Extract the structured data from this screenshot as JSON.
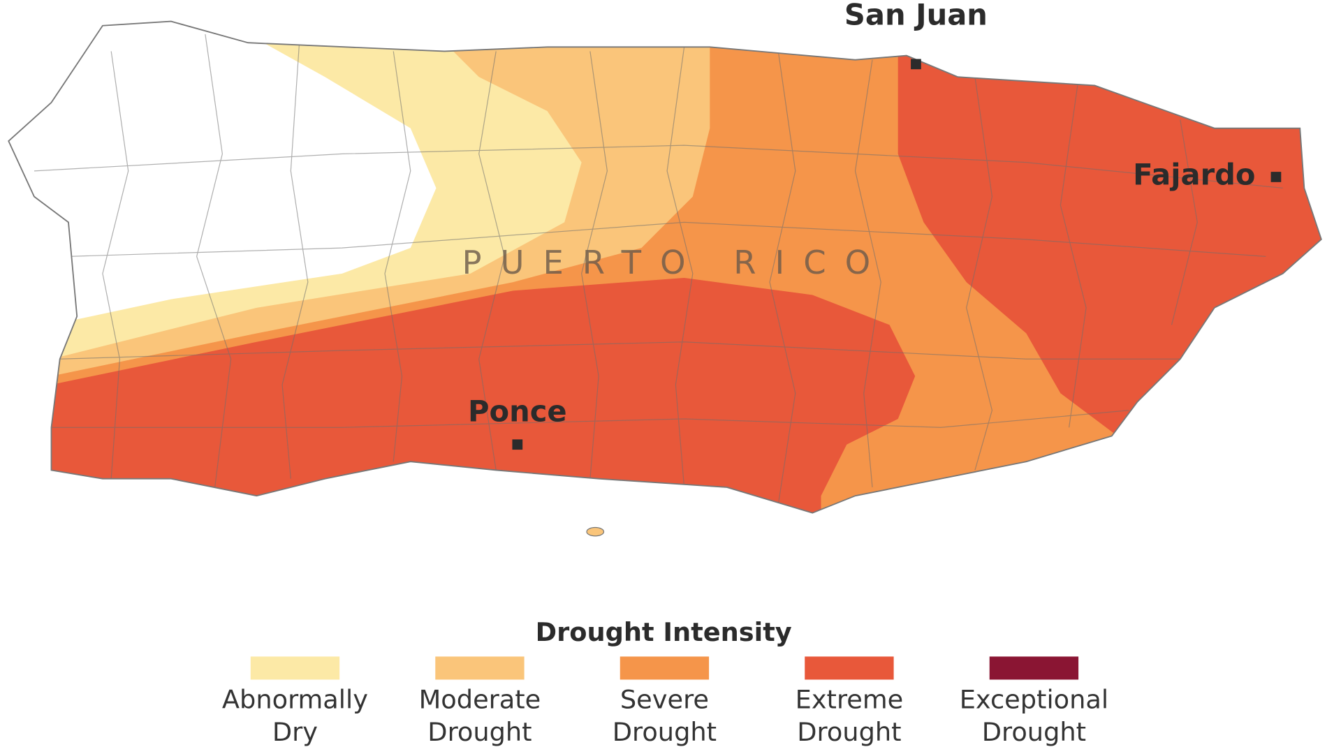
{
  "map": {
    "cities": [
      {
        "label": "San Juan"
      },
      {
        "label": "Fajardo"
      },
      {
        "label": "Ponce"
      }
    ],
    "region_label": "PUERTO RICO",
    "legend": {
      "title": "Drought Intensity",
      "items": [
        {
          "lines": [
            "Abnormally",
            "Dry"
          ],
          "color": "#fce9a6"
        },
        {
          "lines": [
            "Moderate",
            "Drought"
          ],
          "color": "#fac57a"
        },
        {
          "lines": [
            "Severe",
            "Drought"
          ],
          "color": "#f5954a"
        },
        {
          "lines": [
            "Extreme",
            "Drought"
          ],
          "color": "#e8583a"
        },
        {
          "lines": [
            "Exceptional",
            "Drought"
          ],
          "color": "#8a1533"
        }
      ]
    }
  }
}
